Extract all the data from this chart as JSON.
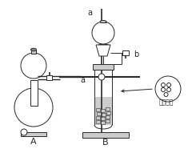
{
  "label_A": "A",
  "label_B": "B",
  "label_a": "a",
  "label_b": "b",
  "label_porous": "多孔筛网",
  "bg_color": "#ffffff",
  "line_color": "#2a2a2a",
  "fill_light": "#cccccc",
  "fill_dark": "#888888",
  "figsize": [
    2.4,
    1.86
  ],
  "dpi": 100
}
